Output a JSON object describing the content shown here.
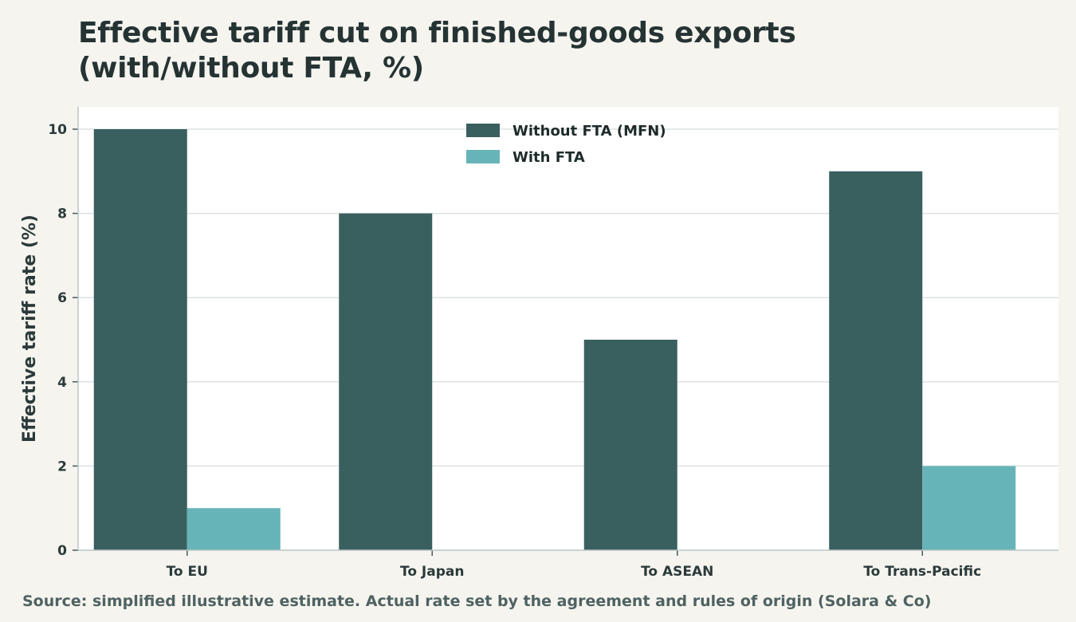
{
  "chart_data": {
    "type": "bar",
    "title": "Effective tariff cut on finished-goods exports (with/without FTA, %)",
    "xlabel": "",
    "ylabel": "Effective tariff rate (%)",
    "categories": [
      "To EU",
      "To Japan",
      "To ASEAN",
      "To Trans-Pacific"
    ],
    "series": [
      {
        "name": "Without FTA (MFN)",
        "values": [
          10,
          8,
          5,
          9
        ],
        "color": "#3a5f5f"
      },
      {
        "name": "With FTA",
        "values": [
          1,
          0,
          0,
          2
        ],
        "color": "#67b4b8"
      }
    ],
    "ylim": [
      0,
      10.5
    ],
    "yticks": [
      0,
      2,
      4,
      6,
      8,
      10
    ],
    "grid": true,
    "legend_position": "top-center"
  },
  "source": "Source: simplified illustrative estimate. Actual rate set by the agreement and rules of origin (Solara & Co)"
}
